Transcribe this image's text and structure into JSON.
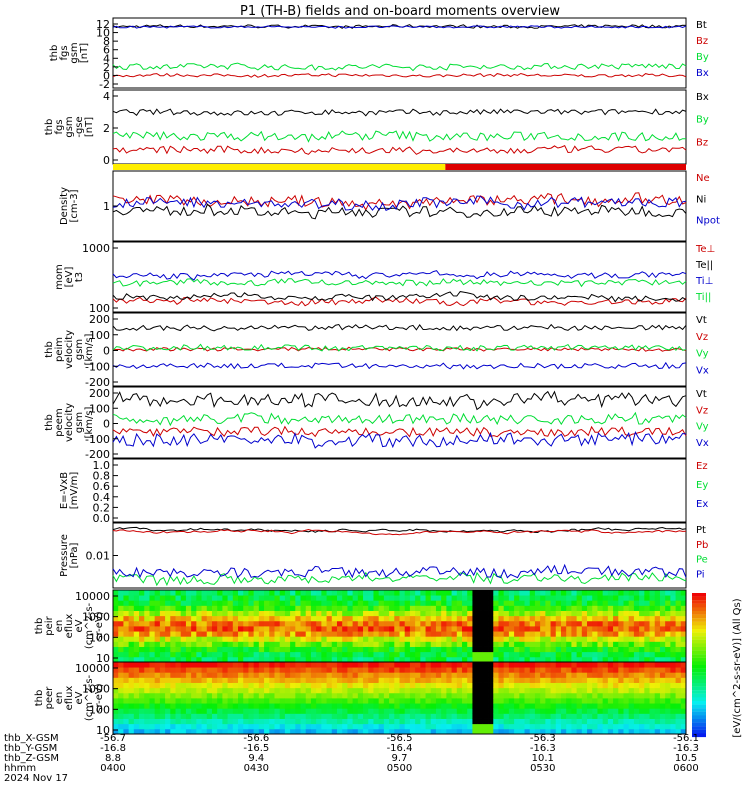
{
  "title": "P1 (TH-B) fields and on-board moments overview",
  "colors": {
    "black": "#000000",
    "red": "#cc0000",
    "green": "#00dd33",
    "blue": "#0000cc",
    "yellow": "#ffee00",
    "barred": "#dd0000"
  },
  "chart_data": [
    {
      "type": "line",
      "name": "fgs",
      "ylabel": [
        "thb",
        "fgs",
        "gsm",
        "[nT]"
      ],
      "ylim": [
        -2,
        12
      ],
      "yticks": [
        "12",
        "10",
        "8",
        "6",
        "4",
        "2",
        "0",
        "-2"
      ],
      "series": [
        {
          "name": "Bt",
          "color": "black",
          "level": 10.3,
          "noise": 0.3
        },
        {
          "name": "Bz",
          "color": "red",
          "level": 0.5,
          "noise": 0.3
        },
        {
          "name": "By",
          "color": "green",
          "level": 2.3,
          "noise": 0.6
        },
        {
          "name": "Bx",
          "color": "blue",
          "level": 10.2,
          "noise": 0.2
        }
      ]
    },
    {
      "type": "line",
      "name": "fgs-gsm",
      "ylabel": [
        "thb",
        "fgs",
        "gsm",
        "-gse",
        "[nT]"
      ],
      "ylim": [
        -2,
        6
      ],
      "yticks": [
        "4",
        "2",
        "0"
      ],
      "series": [
        {
          "name": "Bx",
          "color": "black",
          "level": 3.6,
          "noise": 0.3
        },
        {
          "name": "By",
          "color": "green",
          "level": 1.0,
          "noise": 0.5
        },
        {
          "name": "Bz",
          "color": "red",
          "level": -0.5,
          "noise": 0.4
        }
      ]
    },
    {
      "type": "bar",
      "name": "mode-bar",
      "segments": [
        {
          "from": 0,
          "to": 0.58,
          "color": "yellow"
        },
        {
          "from": 0.58,
          "to": 1,
          "color": "barred"
        }
      ]
    },
    {
      "type": "line",
      "name": "density",
      "ylabel": [
        "Density",
        "[cm-3]"
      ],
      "ylim": [
        0.05,
        5
      ],
      "log": true,
      "yticks": [
        "1"
      ],
      "series": [
        {
          "name": "Ne",
          "color": "red",
          "level": 0.7,
          "noise": 0.15
        },
        {
          "name": "Ni",
          "color": "black",
          "level": 0.35,
          "noise": 0.15
        },
        {
          "name": "Npot",
          "color": "blue",
          "level": 0.6,
          "noise": 0.15
        }
      ]
    },
    {
      "type": "line",
      "name": "temperature",
      "ylabel": [
        "mom",
        "[eV]",
        "t3"
      ],
      "ylim": [
        20,
        2000
      ],
      "log": true,
      "yticks": [
        "1000",
        "100"
      ],
      "series": [
        {
          "name": "Te⊥",
          "color": "red",
          "level": 40,
          "noise": 0.08
        },
        {
          "name": "Te||",
          "color": "black",
          "level": 55,
          "noise": 0.08
        },
        {
          "name": "Ti⊥",
          "color": "blue",
          "level": 230,
          "noise": 0.08
        },
        {
          "name": "Ti||",
          "color": "green",
          "level": 140,
          "noise": 0.08
        }
      ]
    },
    {
      "type": "line",
      "name": "peim-velocity",
      "ylabel": [
        "thb",
        "peim",
        "velocity",
        "gsm",
        "[km/s]"
      ],
      "ylim": [
        -200,
        200
      ],
      "yticks": [
        "200",
        "100",
        "0",
        "-100",
        "-200"
      ],
      "series": [
        {
          "name": "Vt",
          "color": "black",
          "level": 120,
          "noise": 15
        },
        {
          "name": "Vz",
          "color": "red",
          "level": 0,
          "noise": 10
        },
        {
          "name": "Vy",
          "color": "green",
          "level": 10,
          "noise": 15
        },
        {
          "name": "Vx",
          "color": "blue",
          "level": -90,
          "noise": 15
        }
      ]
    },
    {
      "type": "line",
      "name": "peem-velocity",
      "ylabel": [
        "thb",
        "peem",
        "velocity",
        "gsm",
        "[km/s]"
      ],
      "ylim": [
        -200,
        200
      ],
      "yticks": [
        "200",
        "100",
        "0",
        "-100",
        "-200"
      ],
      "series": [
        {
          "name": "Vt",
          "color": "black",
          "level": 130,
          "noise": 40
        },
        {
          "name": "Vz",
          "color": "red",
          "level": -50,
          "noise": 25
        },
        {
          "name": "Vy",
          "color": "green",
          "level": 20,
          "noise": 30
        },
        {
          "name": "Vx",
          "color": "blue",
          "level": -100,
          "noise": 35
        }
      ]
    },
    {
      "type": "line",
      "name": "efield",
      "ylabel": [
        "E=-VxB",
        "[mV/m]"
      ],
      "ylim": [
        -0.2,
        1.0
      ],
      "yticks": [
        "1.0",
        "0.8",
        "0.6",
        "0.4",
        "0.2",
        "0.0"
      ],
      "series": [
        {
          "name": "Ez",
          "color": "red"
        },
        {
          "name": "Ey",
          "color": "green"
        },
        {
          "name": "Ex",
          "color": "blue"
        }
      ]
    },
    {
      "type": "line",
      "name": "pressure",
      "ylabel": [
        "Pressure",
        "[nPa]"
      ],
      "ylim": [
        0.002,
        0.2
      ],
      "log": true,
      "yticks": [
        "0.01"
      ],
      "series": [
        {
          "name": "Pt",
          "color": "black",
          "level": 0.12,
          "noise": 0.02
        },
        {
          "name": "Pb",
          "color": "red",
          "level": 0.11,
          "noise": 0.02
        },
        {
          "name": "Pe",
          "color": "green",
          "level": 0.004,
          "noise": 0.15
        },
        {
          "name": "Pi",
          "color": "blue",
          "level": 0.006,
          "noise": 0.15
        }
      ]
    },
    {
      "type": "heatmap",
      "name": "peir-spectrogram",
      "ylabel": [
        "thb",
        "peir",
        "en",
        "eflux",
        "eV",
        "(cm^2-s-",
        "sr-eV)"
      ],
      "ylim": [
        10,
        10000
      ],
      "log": true,
      "yticks": [
        "10000",
        "1000",
        "100",
        "10"
      ],
      "colorbar_ticks": [
        "10",
        "10",
        "10",
        "10",
        "10",
        "10"
      ],
      "colorbar_label": "[eV/(cm^2-s-sr-eV)] (All Qs)"
    },
    {
      "type": "heatmap",
      "name": "peer-spectrogram",
      "ylabel": [
        "thb",
        "peer",
        "en",
        "eflux",
        "eV",
        "(cm^2-s-",
        "sr-eV)"
      ],
      "ylim": [
        10,
        10000
      ],
      "log": true,
      "yticks": [
        "10000",
        "1000",
        "100",
        "10"
      ]
    }
  ],
  "footer": {
    "row_labels": [
      "thb_X-GSM",
      "thb_Y-GSM",
      "thb_Z-GSM",
      "hhmm",
      "2024 Nov 17"
    ],
    "columns": [
      [
        "-56.7",
        "-16.8",
        "8.8",
        "0400"
      ],
      [
        "-56.6",
        "-16.5",
        "9.4",
        "0430"
      ],
      [
        "-56.5",
        "-16.4",
        "9.7",
        "0500"
      ],
      [
        "-56.3",
        "-16.3",
        "10.1",
        "0530"
      ],
      [
        "-56.1",
        "-16.3",
        "10.5",
        "0600"
      ]
    ]
  }
}
